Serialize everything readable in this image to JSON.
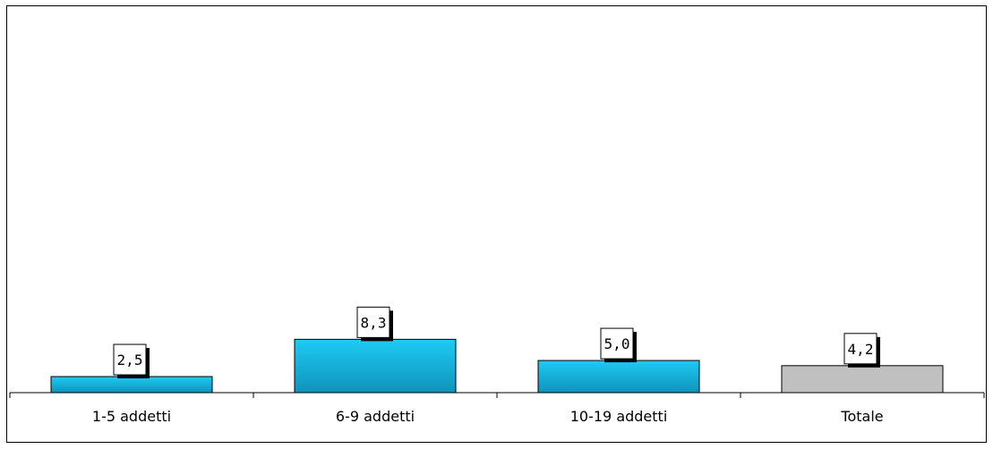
{
  "chart_data": {
    "type": "bar",
    "categories": [
      "1-5 addetti",
      "6-9 addetti",
      "10-19 addetti",
      "Totale"
    ],
    "values": [
      2.5,
      8.3,
      5.0,
      4.2
    ],
    "data_labels": [
      "2,5",
      "8,3",
      "5,0",
      "4,2"
    ],
    "bar_colors": [
      "#19c3ee",
      "#19c3ee",
      "#19c3ee",
      "#c0c0c0"
    ],
    "highlight_color": "#19c3ee",
    "total_color": "#c0c0c0",
    "ylim": [
      0,
      59
    ],
    "title": "",
    "xlabel": "",
    "ylabel": "",
    "grid": false,
    "legend": "none"
  }
}
